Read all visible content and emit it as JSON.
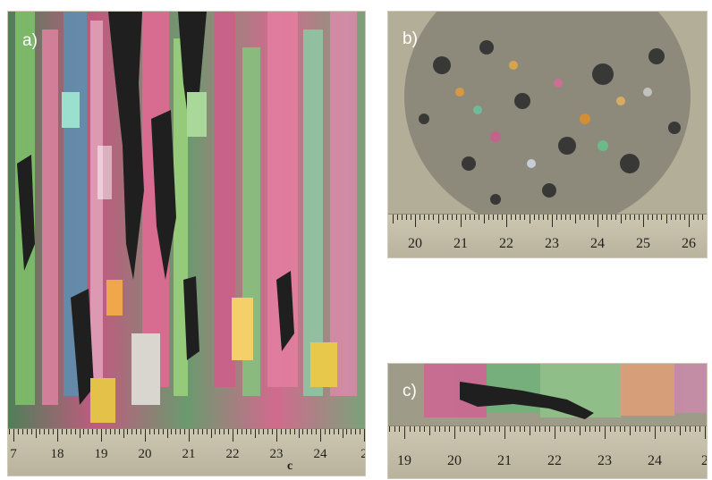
{
  "panels": {
    "a": {
      "label": "a)",
      "ruler_numbers": [
        "7",
        "18",
        "19",
        "20",
        "21",
        "22",
        "23",
        "24",
        "2"
      ],
      "ruler_extra": "c"
    },
    "b": {
      "label": "b)",
      "ruler_numbers": [
        "20",
        "21",
        "22",
        "23",
        "24",
        "25",
        "26"
      ]
    },
    "c": {
      "label": "c)",
      "ruler_numbers": [
        "19",
        "20",
        "21",
        "22",
        "23",
        "24",
        "2"
      ]
    }
  }
}
